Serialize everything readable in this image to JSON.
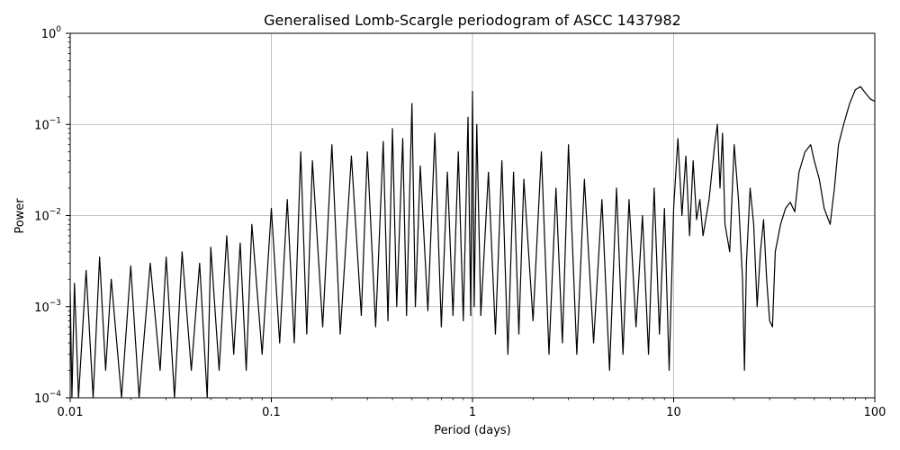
{
  "chart_data": {
    "type": "line",
    "title": "Generalised Lomb-Scargle periodogram of ASCC 1437982",
    "xlabel": "Period (days)",
    "ylabel": "Power",
    "xscale": "log",
    "yscale": "log",
    "xlim": [
      0.01,
      100
    ],
    "ylim": [
      0.0001,
      1
    ],
    "grid": true,
    "line_color": "#000000",
    "x_ticks": [
      {
        "value": 0.01,
        "label": "0.01"
      },
      {
        "value": 0.1,
        "label": "0.1"
      },
      {
        "value": 1,
        "label": "1"
      },
      {
        "value": 10,
        "label": "10"
      },
      {
        "value": 100,
        "label": "100"
      }
    ],
    "y_ticks": [
      {
        "value": 0.0001,
        "base": "10",
        "exp": "−4"
      },
      {
        "value": 0.001,
        "base": "10",
        "exp": "−3"
      },
      {
        "value": 0.01,
        "base": "10",
        "exp": "−2"
      },
      {
        "value": 0.1,
        "base": "10",
        "exp": "−1"
      },
      {
        "value": 1,
        "base": "10",
        "exp": "0"
      }
    ],
    "series": [
      {
        "x": [
          0.01,
          0.0102,
          0.0105,
          0.011,
          0.012,
          0.013,
          0.014,
          0.015,
          0.016,
          0.018,
          0.02,
          0.022,
          0.025,
          0.028,
          0.03,
          0.033,
          0.036,
          0.04,
          0.044,
          0.048,
          0.05,
          0.055,
          0.06,
          0.065,
          0.07,
          0.075,
          0.08,
          0.09,
          0.1,
          0.11,
          0.12,
          0.13,
          0.14,
          0.15,
          0.16,
          0.18,
          0.2,
          0.22,
          0.25,
          0.28,
          0.3,
          0.33,
          0.36,
          0.38,
          0.4,
          0.42,
          0.45,
          0.47,
          0.5,
          0.52,
          0.55,
          0.6,
          0.65,
          0.7,
          0.75,
          0.8,
          0.85,
          0.9,
          0.95,
          0.98,
          1.0,
          1.02,
          1.05,
          1.1,
          1.2,
          1.3,
          1.4,
          1.5,
          1.6,
          1.7,
          1.8,
          2.0,
          2.2,
          2.4,
          2.6,
          2.8,
          3.0,
          3.3,
          3.6,
          4.0,
          4.4,
          4.8,
          5.2,
          5.6,
          6.0,
          6.5,
          7.0,
          7.5,
          8.0,
          8.5,
          9.0,
          9.5,
          10.0,
          10.5,
          11.0,
          11.5,
          12.0,
          12.5,
          13.0,
          13.5,
          14.0,
          15.0,
          16.0,
          16.5,
          17.0,
          17.5,
          18.0,
          19.0,
          20.0,
          21.0,
          22.0,
          22.5,
          23.0,
          24.0,
          25.0,
          26.0,
          27.0,
          28.0,
          29.0,
          30.0,
          31.0,
          32.0,
          34.0,
          36.0,
          38.0,
          40.0,
          42.0,
          45.0,
          48.0,
          50.0,
          53.0,
          56.0,
          60.0,
          63.0,
          66.0,
          70.0,
          75.0,
          80.0,
          85.0,
          90.0,
          95.0,
          100.0
        ],
        "y": [
          0.0015,
          0.0001,
          0.0018,
          0.0001,
          0.0025,
          0.0001,
          0.0035,
          0.0002,
          0.002,
          0.0001,
          0.0028,
          0.0001,
          0.003,
          0.0002,
          0.0035,
          0.0001,
          0.004,
          0.0002,
          0.003,
          0.0001,
          0.0045,
          0.0002,
          0.006,
          0.0003,
          0.005,
          0.0002,
          0.008,
          0.0003,
          0.012,
          0.0004,
          0.015,
          0.0004,
          0.05,
          0.0005,
          0.04,
          0.0006,
          0.06,
          0.0005,
          0.045,
          0.0008,
          0.05,
          0.0006,
          0.065,
          0.0007,
          0.09,
          0.001,
          0.07,
          0.0008,
          0.17,
          0.001,
          0.035,
          0.0009,
          0.08,
          0.0006,
          0.03,
          0.0008,
          0.05,
          0.0007,
          0.12,
          0.0008,
          0.23,
          0.001,
          0.1,
          0.0008,
          0.03,
          0.0005,
          0.04,
          0.0003,
          0.03,
          0.0005,
          0.025,
          0.0007,
          0.05,
          0.0003,
          0.02,
          0.0004,
          0.06,
          0.0003,
          0.025,
          0.0004,
          0.015,
          0.0002,
          0.02,
          0.0003,
          0.015,
          0.0006,
          0.01,
          0.0003,
          0.02,
          0.0005,
          0.012,
          0.0002,
          0.012,
          0.07,
          0.01,
          0.045,
          0.006,
          0.04,
          0.009,
          0.015,
          0.006,
          0.015,
          0.06,
          0.1,
          0.02,
          0.08,
          0.008,
          0.004,
          0.06,
          0.015,
          0.002,
          0.0002,
          0.003,
          0.02,
          0.008,
          0.001,
          0.004,
          0.009,
          0.002,
          0.0007,
          0.0006,
          0.004,
          0.008,
          0.012,
          0.014,
          0.011,
          0.03,
          0.05,
          0.06,
          0.04,
          0.025,
          0.012,
          0.008,
          0.02,
          0.06,
          0.1,
          0.17,
          0.24,
          0.26,
          0.22,
          0.19,
          0.18
        ]
      }
    ]
  }
}
